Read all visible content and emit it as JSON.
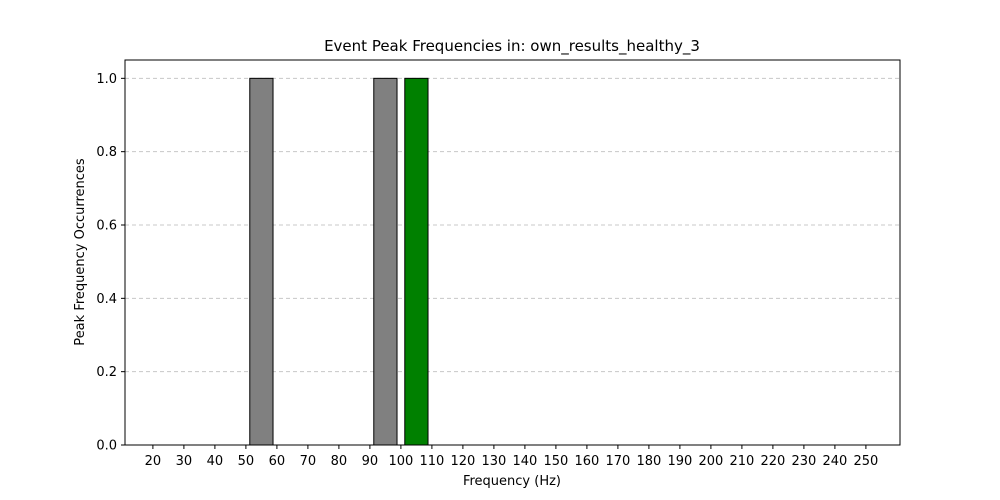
{
  "chart_data": {
    "type": "bar",
    "title": "Event Peak Frequencies in: own_results_healthy_3",
    "xlabel": "Frequency (Hz)",
    "ylabel": "Peak Frequency Occurrences",
    "xlim": [
      11,
      261
    ],
    "ylim": [
      0,
      1.05
    ],
    "x_ticks": [
      20,
      30,
      40,
      50,
      60,
      70,
      80,
      90,
      100,
      110,
      120,
      130,
      140,
      150,
      160,
      170,
      180,
      190,
      200,
      210,
      220,
      230,
      240,
      250
    ],
    "y_ticks": [
      "0.0",
      "0.2",
      "0.4",
      "0.6",
      "0.8",
      "1.0"
    ],
    "bar_width": 7.5,
    "grid": {
      "y": true,
      "x": false,
      "style": "dashed"
    },
    "bars": [
      {
        "x": 20,
        "value": 0,
        "color": "#808080"
      },
      {
        "x": 30,
        "value": 0,
        "color": "#808080"
      },
      {
        "x": 40,
        "value": 0,
        "color": "#808080"
      },
      {
        "x": 50,
        "value": 0,
        "color": "#808080"
      },
      {
        "x": 55,
        "value": 1,
        "color": "#808080"
      },
      {
        "x": 60,
        "value": 0,
        "color": "#808080"
      },
      {
        "x": 70,
        "value": 0,
        "color": "#808080"
      },
      {
        "x": 80,
        "value": 0,
        "color": "#808080"
      },
      {
        "x": 90,
        "value": 0,
        "color": "#808080"
      },
      {
        "x": 95,
        "value": 1,
        "color": "#808080"
      },
      {
        "x": 105,
        "value": 1,
        "color": "#008000"
      },
      {
        "x": 110,
        "value": 0,
        "color": "#808080"
      },
      {
        "x": 120,
        "value": 0,
        "color": "#808080"
      },
      {
        "x": 130,
        "value": 0,
        "color": "#808080"
      },
      {
        "x": 140,
        "value": 0,
        "color": "#808080"
      },
      {
        "x": 150,
        "value": 0,
        "color": "#808080"
      },
      {
        "x": 160,
        "value": 0,
        "color": "#808080"
      },
      {
        "x": 170,
        "value": 0,
        "color": "#808080"
      },
      {
        "x": 180,
        "value": 0,
        "color": "#808080"
      },
      {
        "x": 190,
        "value": 0,
        "color": "#808080"
      },
      {
        "x": 200,
        "value": 0,
        "color": "#808080"
      },
      {
        "x": 210,
        "value": 0,
        "color": "#808080"
      },
      {
        "x": 220,
        "value": 0,
        "color": "#808080"
      },
      {
        "x": 230,
        "value": 0,
        "color": "#808080"
      },
      {
        "x": 240,
        "value": 0,
        "color": "#808080"
      },
      {
        "x": 250,
        "value": 0,
        "color": "#808080"
      }
    ]
  }
}
